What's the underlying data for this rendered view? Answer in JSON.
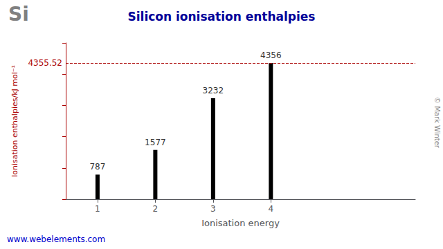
{
  "chart_data": {
    "type": "bar",
    "title": "Silicon ionisation enthalpies",
    "x_label": "Ionisation energy",
    "y_label": "Ionisation enthalpies/kJ mol⁻¹",
    "x": [
      1,
      2,
      3,
      4
    ],
    "values": [
      787,
      1577,
      3232,
      4356
    ],
    "color": "#000000",
    "xlim": [
      0.45,
      6.5
    ],
    "xticks": [
      1,
      2,
      3,
      4
    ],
    "ylim": [
      0,
      5000
    ],
    "yticks": [
      0,
      1000,
      2000,
      3000,
      4000,
      5000
    ],
    "tick_labels": "x",
    "grid": false,
    "data_labels": true,
    "annotations": [
      {
        "text": "4355.52",
        "y": 4355.52
      },
      {
        "text": "Si"
      },
      {
        "text": "© Mark Winter"
      },
      {
        "text": "www.webelements.com"
      }
    ]
  }
}
